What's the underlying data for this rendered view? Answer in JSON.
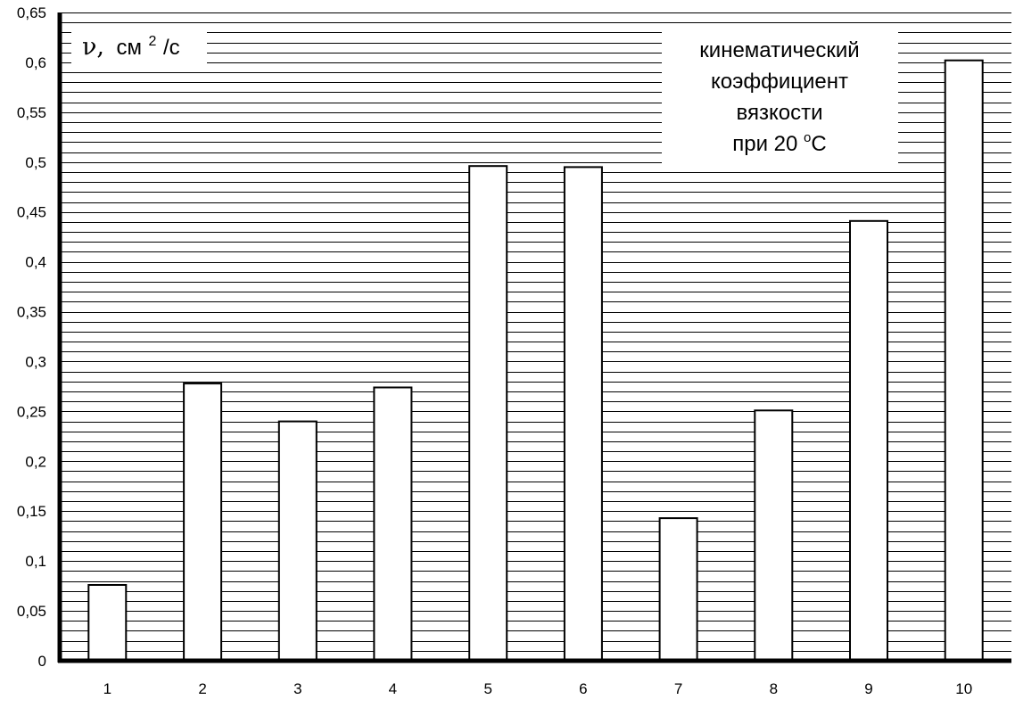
{
  "chart_data": {
    "type": "bar",
    "title": "",
    "xlabel": "",
    "ylabel": {
      "symbol": "ν,",
      "unit_base": "см",
      "unit_exp": "2",
      "unit_tail": "/с"
    },
    "annotation": {
      "line1": "кинематический",
      "line2": "коэффициент",
      "line3": "вязкости",
      "line4_prefix": "при 20 ",
      "line4_degree": "o",
      "line4_suffix": "C"
    },
    "categories": [
      "1",
      "2",
      "3",
      "4",
      "5",
      "6",
      "7",
      "8",
      "9",
      "10"
    ],
    "values": [
      0.076,
      0.278,
      0.24,
      0.274,
      0.496,
      0.495,
      0.143,
      0.251,
      0.441,
      0.602
    ],
    "ylim": [
      0,
      0.65
    ],
    "yticks": [
      {
        "v": 0,
        "label": "0"
      },
      {
        "v": 0.05,
        "label": "0,05"
      },
      {
        "v": 0.1,
        "label": "0,1"
      },
      {
        "v": 0.15,
        "label": "0,15"
      },
      {
        "v": 0.2,
        "label": "0,2"
      },
      {
        "v": 0.25,
        "label": "0,25"
      },
      {
        "v": 0.3,
        "label": "0,3"
      },
      {
        "v": 0.35,
        "label": "0,35"
      },
      {
        "v": 0.4,
        "label": "0,4"
      },
      {
        "v": 0.45,
        "label": "0,45"
      },
      {
        "v": 0.5,
        "label": "0,5"
      },
      {
        "v": 0.55,
        "label": "0,55"
      },
      {
        "v": 0.6,
        "label": "0,6"
      },
      {
        "v": 0.65,
        "label": "0,65"
      }
    ],
    "grid": true,
    "minor_grid_step": 0.01,
    "colors": {
      "bar_fill": "#ffffff",
      "bar_stroke": "#000000",
      "grid": "#000000",
      "axis": "#000000",
      "background": "#ffffff"
    }
  }
}
